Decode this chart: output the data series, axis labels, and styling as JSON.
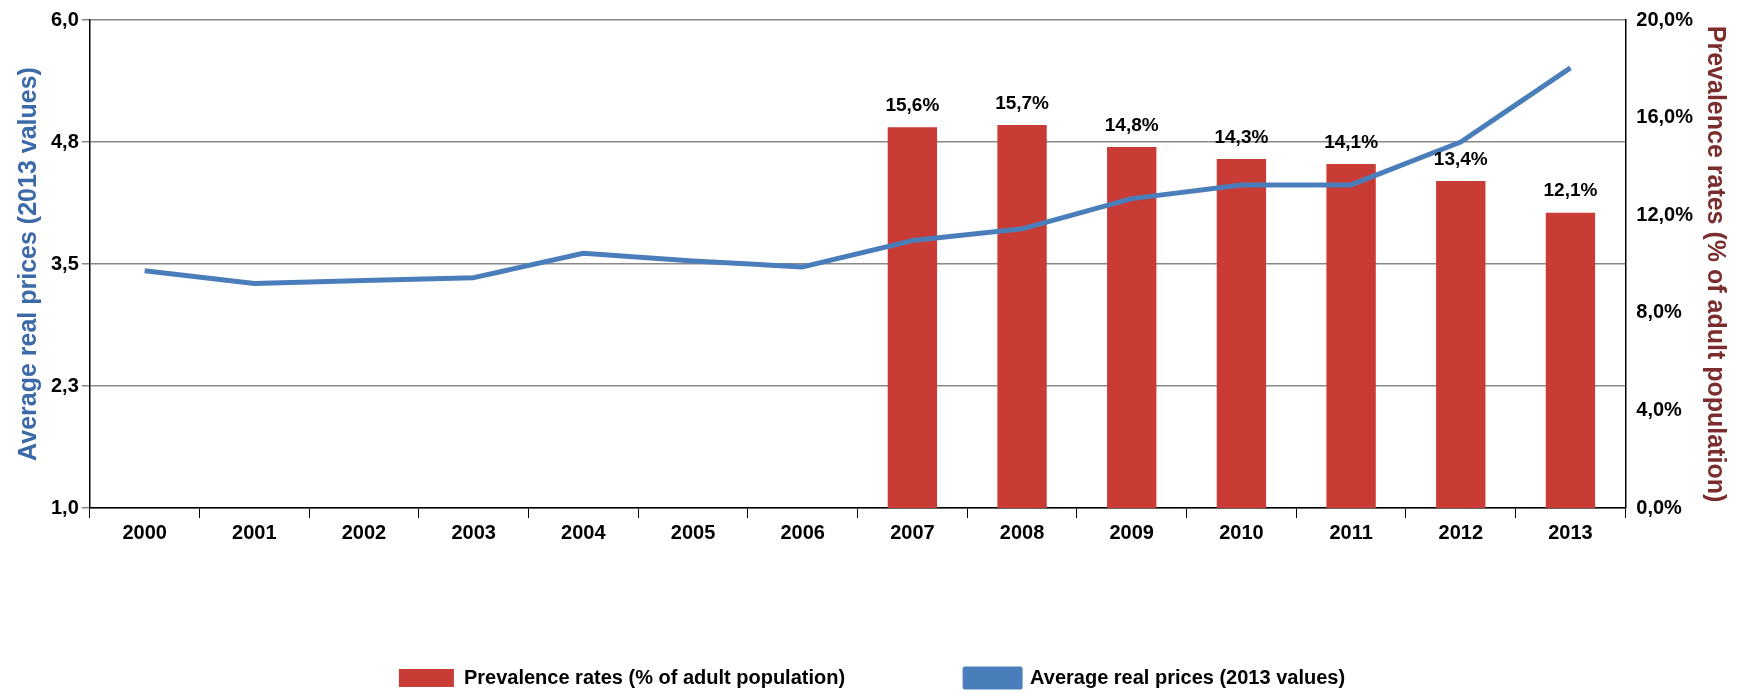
{
  "chart_data": {
    "type": "bar",
    "categories": [
      "2000",
      "2001",
      "2002",
      "2003",
      "2004",
      "2005",
      "2006",
      "2007",
      "2008",
      "2009",
      "2010",
      "2011",
      "2012",
      "2013"
    ],
    "series": [
      {
        "name": "Prevalence rates (% of adult population)",
        "axis": "y2",
        "color": "#c93c35",
        "values": [
          null,
          null,
          null,
          null,
          null,
          null,
          null,
          15.6,
          15.7,
          14.8,
          14.3,
          14.1,
          13.4,
          12.1
        ],
        "value_labels": [
          null,
          null,
          null,
          null,
          null,
          null,
          null,
          "15,6%",
          "15,7%",
          "14,8%",
          "14,3%",
          "14,1%",
          "13,4%",
          "12,1%"
        ]
      },
      {
        "name": "Average real prices (2013 values)",
        "type": "line",
        "color": "#4a7ebb",
        "values": [
          3.43,
          3.3,
          3.33,
          3.36,
          3.61,
          3.53,
          3.47,
          3.74,
          3.86,
          4.17,
          4.31,
          4.31,
          4.75,
          5.51
        ]
      }
    ],
    "ylabel": "Average real prices (2013 values)",
    "y2label": "Prevalence rates (% of adult population)",
    "ylim": [
      1,
      6
    ],
    "yticks": [
      {
        "value": 1,
        "label": "1,0"
      },
      {
        "value": 2.25,
        "label": "2,3"
      },
      {
        "value": 3.5,
        "label": "3,5"
      },
      {
        "value": 4.75,
        "label": "4,8"
      },
      {
        "value": 6,
        "label": "6,0"
      }
    ],
    "y2lim": [
      0,
      20
    ],
    "y2ticks": [
      {
        "value": 0,
        "label": "0,0%"
      },
      {
        "value": 4,
        "label": "4,0%"
      },
      {
        "value": 8,
        "label": "8,0%"
      },
      {
        "value": 12,
        "label": "12,0%"
      },
      {
        "value": 16,
        "label": "16,0%"
      },
      {
        "value": 20,
        "label": "20,0%"
      }
    ],
    "grid": "y",
    "legend": "bottom",
    "marker": "none",
    "line_style": "solid"
  }
}
